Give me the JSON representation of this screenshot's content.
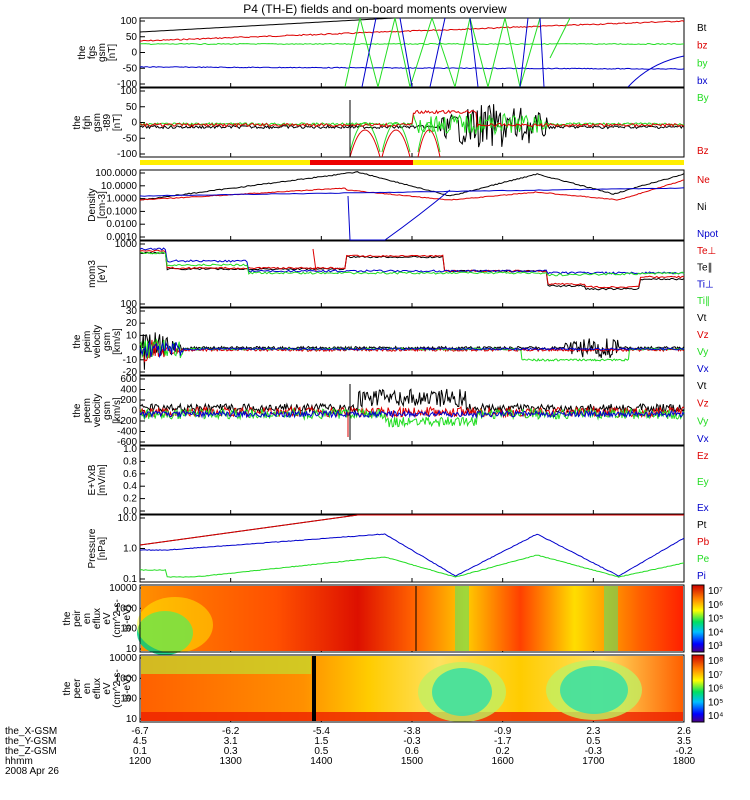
{
  "title": "P4 (TH-E) fields and on-board moments overview",
  "colors": {
    "black": "#000000",
    "red": "#dd0000",
    "green": "#22dd22",
    "blue": "#0000cc",
    "yellow": "#ffee00",
    "bar_red": "#ee0000"
  },
  "chart_data": [
    {
      "id": "fgs",
      "type": "line",
      "ylabel": [
        "the",
        "fgs",
        "gsm",
        "[nT]"
      ],
      "yticks": [
        "100",
        "50",
        "0",
        "-50",
        "-100"
      ],
      "ylim": [
        -100,
        100
      ],
      "legend": [
        {
          "label": "Bt",
          "color": "black"
        },
        {
          "label": "bz",
          "color": "red"
        },
        {
          "label": "by",
          "color": "green"
        },
        {
          "label": "bx",
          "color": "blue"
        }
      ]
    },
    {
      "id": "fgh",
      "type": "line",
      "ylabel": [
        "the",
        "fgh",
        "gsm",
        "-t89",
        "[nT]"
      ],
      "yticks": [
        "100",
        "50",
        "0",
        "-50",
        "-100"
      ],
      "ylim": [
        -120,
        120
      ],
      "legend": [
        {
          "label": "By",
          "color": "green"
        },
        {
          "label": "Bz",
          "color": "red"
        }
      ]
    },
    {
      "id": "density",
      "type": "line",
      "ylabel": [
        "Density",
        "[cm-3]"
      ],
      "yticks": [
        "100.0000",
        "10.0000",
        "1.0000",
        "0.1000",
        "0.0100",
        "0.0010"
      ],
      "log": true,
      "legend": [
        {
          "label": "Ne",
          "color": "red"
        },
        {
          "label": "Ni",
          "color": "black"
        },
        {
          "label": "Npot",
          "color": "blue"
        }
      ]
    },
    {
      "id": "temp",
      "type": "line",
      "ylabel": [
        "mom3",
        "[eV]"
      ],
      "yticks": [
        "1000",
        "100"
      ],
      "log": true,
      "legend": [
        {
          "label": "Te⊥",
          "color": "red"
        },
        {
          "label": "Te∥",
          "color": "black"
        },
        {
          "label": "Ti⊥",
          "color": "blue"
        },
        {
          "label": "Ti∥",
          "color": "green"
        }
      ]
    },
    {
      "id": "peim",
      "type": "line",
      "ylabel": [
        "the",
        "peim",
        "velocity",
        "gsm",
        "[km/s]"
      ],
      "yticks": [
        "30",
        "20",
        "10",
        "0",
        "-10",
        "-20"
      ],
      "ylim": [
        -20,
        30
      ],
      "legend": [
        {
          "label": "Vt",
          "color": "black"
        },
        {
          "label": "Vz",
          "color": "red"
        },
        {
          "label": "Vy",
          "color": "green"
        },
        {
          "label": "Vx",
          "color": "blue"
        }
      ]
    },
    {
      "id": "peem",
      "type": "line",
      "ylabel": [
        "the",
        "peem",
        "velocity",
        "gsm",
        "[km/s]"
      ],
      "yticks": [
        "600",
        "400",
        "200",
        "0",
        "-200",
        "-400",
        "-600"
      ],
      "ylim": [
        -600,
        600
      ],
      "legend": [
        {
          "label": "Vt",
          "color": "black"
        },
        {
          "label": "Vz",
          "color": "red"
        },
        {
          "label": "Vy",
          "color": "green"
        },
        {
          "label": "Vx",
          "color": "blue"
        }
      ]
    },
    {
      "id": "efield",
      "type": "line",
      "ylabel": [
        "E+VxB",
        "[mV/m]"
      ],
      "yticks": [
        "1.0",
        "0.8",
        "0.6",
        "0.4",
        "0.2",
        "0.0"
      ],
      "ylim": [
        0,
        1
      ],
      "legend": [
        {
          "label": "Ez",
          "color": "red"
        },
        {
          "label": "Ey",
          "color": "green"
        },
        {
          "label": "Ex",
          "color": "blue"
        }
      ]
    },
    {
      "id": "pressure",
      "type": "line",
      "ylabel": [
        "Pressure",
        "[nPa]"
      ],
      "yticks": [
        "10.0",
        "1.0",
        "0.1"
      ],
      "log": true,
      "legend": [
        {
          "label": "Pt",
          "color": "black"
        },
        {
          "label": "Pb",
          "color": "red"
        },
        {
          "label": "Pe",
          "color": "green"
        },
        {
          "label": "Pi",
          "color": "blue"
        }
      ]
    },
    {
      "id": "peir",
      "type": "heatmap",
      "ylabel": [
        "the",
        "peir",
        "en",
        "eflux",
        "eV",
        "(cm^2-s-",
        "sr-eV)"
      ],
      "yticks": [
        "10000",
        "1000",
        "100",
        "10"
      ],
      "colorbar": [
        "10⁷",
        "10⁶",
        "10⁵",
        "10⁴",
        "10³"
      ]
    },
    {
      "id": "peer",
      "type": "heatmap",
      "ylabel": [
        "the",
        "peer",
        "en",
        "eflux",
        "eV",
        "(cm^2-s-",
        "sr-eV)"
      ],
      "yticks": [
        "10000",
        "1000",
        "100",
        "10"
      ],
      "colorbar": [
        "10⁸",
        "10⁷",
        "10⁶",
        "10⁵",
        "10⁴"
      ]
    }
  ],
  "xaxis": {
    "rows": [
      {
        "label": "the_X-GSM",
        "values": [
          "-6.7",
          "-6.2",
          "-5.4",
          "-3.8",
          "-0.9",
          "2.3",
          "2.6"
        ]
      },
      {
        "label": "the_Y-GSM",
        "values": [
          "4.5",
          "3.1",
          "1.5",
          "-0.3",
          "-1.7",
          "0.5",
          "3.5"
        ]
      },
      {
        "label": "the_Z-GSM",
        "values": [
          "0.1",
          "0.3",
          "0.5",
          "0.6",
          "0.2",
          "-0.3",
          "-0.2"
        ]
      },
      {
        "label": "hhmm",
        "values": [
          "1200",
          "1300",
          "1400",
          "1500",
          "1600",
          "1700",
          "1800"
        ]
      }
    ],
    "date": "2008 Apr 26"
  }
}
